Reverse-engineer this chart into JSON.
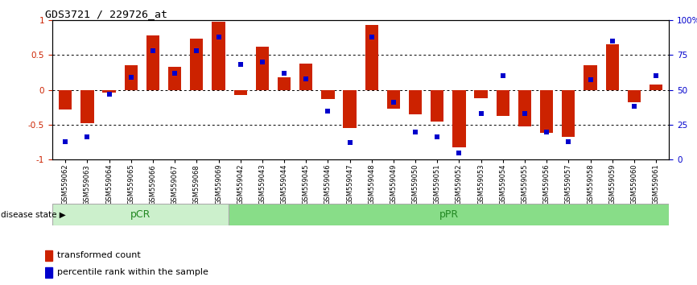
{
  "title": "GDS3721 / 229726_at",
  "samples": [
    "GSM559062",
    "GSM559063",
    "GSM559064",
    "GSM559065",
    "GSM559066",
    "GSM559067",
    "GSM559068",
    "GSM559069",
    "GSM559042",
    "GSM559043",
    "GSM559044",
    "GSM559045",
    "GSM559046",
    "GSM559047",
    "GSM559048",
    "GSM559049",
    "GSM559050",
    "GSM559051",
    "GSM559052",
    "GSM559053",
    "GSM559054",
    "GSM559055",
    "GSM559056",
    "GSM559057",
    "GSM559058",
    "GSM559059",
    "GSM559060",
    "GSM559061"
  ],
  "bar_values": [
    -0.28,
    -0.48,
    -0.04,
    0.35,
    0.78,
    0.33,
    0.73,
    0.97,
    -0.07,
    0.62,
    0.18,
    0.38,
    -0.13,
    -0.55,
    0.93,
    -0.27,
    -0.35,
    -0.45,
    -0.82,
    -0.12,
    -0.38,
    -0.52,
    -0.62,
    -0.68,
    0.35,
    0.65,
    -0.18,
    0.07
  ],
  "dot_values": [
    0.13,
    0.16,
    0.47,
    0.59,
    0.78,
    0.62,
    0.78,
    0.88,
    0.68,
    0.7,
    0.62,
    0.58,
    0.35,
    0.12,
    0.88,
    0.41,
    0.2,
    0.16,
    0.05,
    0.33,
    0.6,
    0.33,
    0.2,
    0.13,
    0.57,
    0.85,
    0.38,
    0.6
  ],
  "pCR_count": 8,
  "pPR_count": 20,
  "bar_color": "#cc2200",
  "dot_color": "#0000cc",
  "pCR_color": "#ccf0cc",
  "pPR_color": "#88dd88",
  "group_label_color": "#228822",
  "ylim": [
    -1,
    1
  ],
  "y2lim": [
    0,
    100
  ],
  "yticks": [
    -1,
    -0.5,
    0,
    0.5,
    1
  ],
  "ytick_labels": [
    "-1",
    "-0.5",
    "0",
    "0.5",
    "1"
  ],
  "y2ticks": [
    0,
    25,
    50,
    75,
    100
  ],
  "y2tick_labels": [
    "0",
    "25",
    "50",
    "75",
    "100%"
  ]
}
